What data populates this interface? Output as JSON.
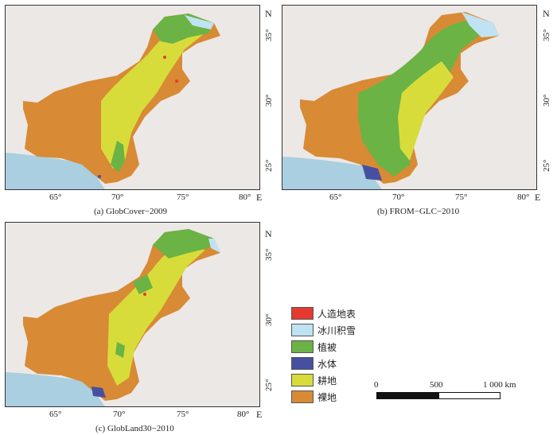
{
  "panels": [
    {
      "caption": "(a) GlobCover−2009",
      "lon_ticks": [
        "65°",
        "70°",
        "75°",
        "80°"
      ],
      "lat_ticks": [
        "35°",
        "30°",
        "25°"
      ],
      "east": "E",
      "north": "N"
    },
    {
      "caption": "(b) FROM−GLC−2010",
      "lon_ticks": [
        "65°",
        "70°",
        "75°",
        "80°"
      ],
      "lat_ticks": [
        "35°",
        "30°",
        "25°"
      ],
      "east": "E",
      "north": "N"
    },
    {
      "caption": "(c) GlobLand30−2010",
      "lon_ticks": [
        "65°",
        "70°",
        "75°",
        "80°"
      ],
      "lat_ticks": [
        "35°",
        "30°",
        "25°"
      ],
      "east": "E",
      "north": "N"
    }
  ],
  "legend": [
    {
      "label": "人造地表",
      "color": "#e53a2f"
    },
    {
      "label": "冰川积雪",
      "color": "#bfe3f2"
    },
    {
      "label": "植被",
      "color": "#6ab344"
    },
    {
      "label": "水体",
      "color": "#4650a0"
    },
    {
      "label": "耕地",
      "color": "#d8dc3a"
    },
    {
      "label": "裸地",
      "color": "#d88a35"
    }
  ],
  "scale_bar": {
    "labels": [
      "0",
      "500",
      "1 000 km"
    ]
  },
  "colors": {
    "sea": "#a9cfe0",
    "background": "#ece8e6"
  }
}
